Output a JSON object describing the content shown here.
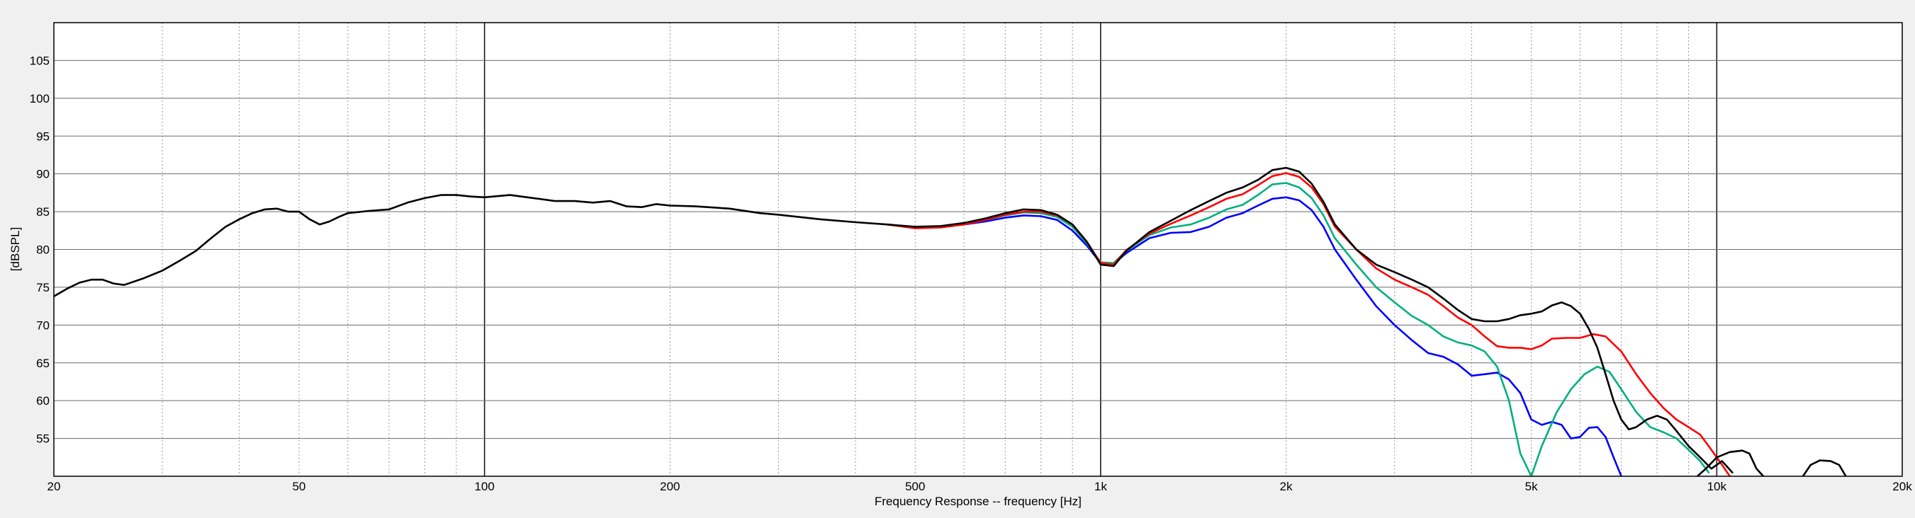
{
  "chart_data": {
    "type": "line",
    "title": "",
    "xlabel": "Frequency Response -- frequency [Hz]",
    "ylabel": "[dBSPL]",
    "xscale": "log",
    "xlim": [
      20,
      20000
    ],
    "ylim": [
      50,
      110
    ],
    "grid": true,
    "legend": "none",
    "x_ticks": [
      {
        "value": 20,
        "label": "20"
      },
      {
        "value": 50,
        "label": "50"
      },
      {
        "value": 100,
        "label": "100"
      },
      {
        "value": 200,
        "label": "200"
      },
      {
        "value": 500,
        "label": "500"
      },
      {
        "value": 1000,
        "label": "1k"
      },
      {
        "value": 2000,
        "label": "2k"
      },
      {
        "value": 5000,
        "label": "5k"
      },
      {
        "value": 10000,
        "label": "10k"
      },
      {
        "value": 20000,
        "label": "20k"
      }
    ],
    "y_ticks": [
      {
        "value": 55,
        "label": "55"
      },
      {
        "value": 60,
        "label": "60"
      },
      {
        "value": 65,
        "label": "65"
      },
      {
        "value": 70,
        "label": "70"
      },
      {
        "value": 75,
        "label": "75"
      },
      {
        "value": 80,
        "label": "80"
      },
      {
        "value": 85,
        "label": "85"
      },
      {
        "value": 90,
        "label": "90"
      },
      {
        "value": 95,
        "label": "95"
      },
      {
        "value": 100,
        "label": "100"
      },
      {
        "value": 105,
        "label": "105"
      }
    ],
    "series": [
      {
        "color": "#0000ff",
        "points": [
          [
            450,
            83.3
          ],
          [
            500,
            82.9
          ],
          [
            550,
            83.0
          ],
          [
            600,
            83.3
          ],
          [
            650,
            83.7
          ],
          [
            700,
            84.2
          ],
          [
            750,
            84.5
          ],
          [
            800,
            84.4
          ],
          [
            850,
            83.9
          ],
          [
            900,
            82.5
          ],
          [
            950,
            80.5
          ],
          [
            1000,
            78.2
          ],
          [
            1050,
            78.1
          ],
          [
            1100,
            79.5
          ],
          [
            1200,
            81.5
          ],
          [
            1300,
            82.2
          ],
          [
            1400,
            82.3
          ],
          [
            1500,
            83.0
          ],
          [
            1600,
            84.2
          ],
          [
            1700,
            84.8
          ],
          [
            1800,
            85.8
          ],
          [
            1900,
            86.7
          ],
          [
            2000,
            86.9
          ],
          [
            2100,
            86.5
          ],
          [
            2200,
            85.2
          ],
          [
            2300,
            83.0
          ],
          [
            2400,
            80.0
          ],
          [
            2600,
            76.0
          ],
          [
            2800,
            72.5
          ],
          [
            3000,
            70.0
          ],
          [
            3200,
            68.0
          ],
          [
            3400,
            66.3
          ],
          [
            3600,
            65.8
          ],
          [
            3800,
            64.8
          ],
          [
            4000,
            63.3
          ],
          [
            4200,
            63.5
          ],
          [
            4400,
            63.7
          ],
          [
            4600,
            62.8
          ],
          [
            4800,
            61.0
          ],
          [
            5000,
            57.5
          ],
          [
            5200,
            56.8
          ],
          [
            5400,
            57.2
          ],
          [
            5600,
            56.8
          ],
          [
            5800,
            55.0
          ],
          [
            6000,
            55.2
          ],
          [
            6200,
            56.4
          ],
          [
            6400,
            56.5
          ],
          [
            6600,
            55.2
          ],
          [
            6800,
            52.5
          ],
          [
            7000,
            50.0
          ]
        ]
      },
      {
        "color": "#00b080",
        "points": [
          [
            450,
            83.3
          ],
          [
            500,
            82.9
          ],
          [
            550,
            83.0
          ],
          [
            600,
            83.4
          ],
          [
            650,
            83.9
          ],
          [
            700,
            84.5
          ],
          [
            750,
            84.9
          ],
          [
            800,
            84.8
          ],
          [
            850,
            84.3
          ],
          [
            900,
            83.0
          ],
          [
            950,
            80.8
          ],
          [
            1000,
            78.3
          ],
          [
            1050,
            78.2
          ],
          [
            1100,
            79.8
          ],
          [
            1200,
            81.9
          ],
          [
            1300,
            82.9
          ],
          [
            1400,
            83.3
          ],
          [
            1500,
            84.2
          ],
          [
            1600,
            85.3
          ],
          [
            1700,
            85.9
          ],
          [
            1800,
            87.2
          ],
          [
            1900,
            88.6
          ],
          [
            2000,
            88.8
          ],
          [
            2100,
            88.2
          ],
          [
            2200,
            86.8
          ],
          [
            2300,
            84.5
          ],
          [
            2400,
            81.5
          ],
          [
            2600,
            78.0
          ],
          [
            2800,
            75.0
          ],
          [
            3000,
            73.0
          ],
          [
            3200,
            71.2
          ],
          [
            3400,
            70.0
          ],
          [
            3600,
            68.5
          ],
          [
            3800,
            67.7
          ],
          [
            4000,
            67.3
          ],
          [
            4200,
            66.5
          ],
          [
            4400,
            64.5
          ],
          [
            4600,
            60.0
          ],
          [
            4800,
            53.0
          ],
          [
            5000,
            50.0
          ],
          [
            5200,
            54.0
          ],
          [
            5500,
            58.5
          ],
          [
            5800,
            61.5
          ],
          [
            6100,
            63.5
          ],
          [
            6400,
            64.5
          ],
          [
            6700,
            63.8
          ],
          [
            7000,
            61.5
          ],
          [
            7400,
            58.5
          ],
          [
            7800,
            56.5
          ],
          [
            8200,
            55.8
          ],
          [
            8600,
            55.0
          ],
          [
            9000,
            53.5
          ],
          [
            9400,
            52.0
          ],
          [
            9700,
            50.5
          ]
        ]
      },
      {
        "color": "#ff0000",
        "points": [
          [
            450,
            83.3
          ],
          [
            500,
            82.8
          ],
          [
            550,
            82.9
          ],
          [
            600,
            83.3
          ],
          [
            650,
            83.9
          ],
          [
            700,
            84.6
          ],
          [
            750,
            85.0
          ],
          [
            800,
            85.0
          ],
          [
            850,
            84.5
          ],
          [
            900,
            83.3
          ],
          [
            950,
            81.0
          ],
          [
            1000,
            78.2
          ],
          [
            1050,
            78.0
          ],
          [
            1100,
            79.9
          ],
          [
            1200,
            82.1
          ],
          [
            1300,
            83.4
          ],
          [
            1400,
            84.5
          ],
          [
            1500,
            85.6
          ],
          [
            1600,
            86.7
          ],
          [
            1700,
            87.3
          ],
          [
            1800,
            88.5
          ],
          [
            1900,
            89.7
          ],
          [
            2000,
            90.1
          ],
          [
            2100,
            89.6
          ],
          [
            2200,
            88.2
          ],
          [
            2300,
            86.0
          ],
          [
            2400,
            83.0
          ],
          [
            2600,
            80.0
          ],
          [
            2800,
            77.5
          ],
          [
            3000,
            76.0
          ],
          [
            3200,
            75.0
          ],
          [
            3400,
            74.0
          ],
          [
            3600,
            72.5
          ],
          [
            3800,
            71.0
          ],
          [
            4000,
            70.0
          ],
          [
            4200,
            68.5
          ],
          [
            4400,
            67.2
          ],
          [
            4600,
            67.0
          ],
          [
            4800,
            67.0
          ],
          [
            5000,
            66.8
          ],
          [
            5200,
            67.3
          ],
          [
            5400,
            68.2
          ],
          [
            5700,
            68.3
          ],
          [
            6000,
            68.3
          ],
          [
            6300,
            68.8
          ],
          [
            6600,
            68.5
          ],
          [
            7000,
            66.5
          ],
          [
            7400,
            63.5
          ],
          [
            7800,
            61.0
          ],
          [
            8200,
            59.0
          ],
          [
            8600,
            57.5
          ],
          [
            9000,
            56.5
          ],
          [
            9400,
            55.5
          ],
          [
            9800,
            53.5
          ],
          [
            10200,
            51.5
          ],
          [
            10500,
            50.0
          ]
        ]
      },
      {
        "color": "#000000",
        "points": [
          [
            20,
            73.8
          ],
          [
            21,
            74.8
          ],
          [
            22,
            75.6
          ],
          [
            23,
            76.0
          ],
          [
            24,
            76.0
          ],
          [
            25,
            75.5
          ],
          [
            26,
            75.3
          ],
          [
            28,
            76.2
          ],
          [
            30,
            77.2
          ],
          [
            32,
            78.5
          ],
          [
            34,
            79.8
          ],
          [
            36,
            81.5
          ],
          [
            38,
            83.0
          ],
          [
            40,
            84.0
          ],
          [
            42,
            84.8
          ],
          [
            44,
            85.3
          ],
          [
            46,
            85.4
          ],
          [
            48,
            85.0
          ],
          [
            50,
            85.0
          ],
          [
            52,
            84.0
          ],
          [
            54,
            83.3
          ],
          [
            56,
            83.7
          ],
          [
            58,
            84.3
          ],
          [
            60,
            84.8
          ],
          [
            65,
            85.1
          ],
          [
            70,
            85.3
          ],
          [
            75,
            86.2
          ],
          [
            80,
            86.8
          ],
          [
            85,
            87.2
          ],
          [
            90,
            87.2
          ],
          [
            95,
            87.0
          ],
          [
            100,
            86.9
          ],
          [
            110,
            87.2
          ],
          [
            120,
            86.8
          ],
          [
            130,
            86.4
          ],
          [
            140,
            86.4
          ],
          [
            150,
            86.2
          ],
          [
            160,
            86.4
          ],
          [
            170,
            85.7
          ],
          [
            180,
            85.6
          ],
          [
            190,
            86.0
          ],
          [
            200,
            85.8
          ],
          [
            220,
            85.7
          ],
          [
            250,
            85.4
          ],
          [
            280,
            84.8
          ],
          [
            300,
            84.6
          ],
          [
            350,
            84.0
          ],
          [
            400,
            83.6
          ],
          [
            450,
            83.3
          ],
          [
            500,
            83.0
          ],
          [
            550,
            83.1
          ],
          [
            600,
            83.5
          ],
          [
            650,
            84.1
          ],
          [
            700,
            84.8
          ],
          [
            750,
            85.3
          ],
          [
            800,
            85.2
          ],
          [
            850,
            84.6
          ],
          [
            900,
            83.3
          ],
          [
            950,
            81.0
          ],
          [
            1000,
            78.0
          ],
          [
            1050,
            77.8
          ],
          [
            1100,
            79.8
          ],
          [
            1200,
            82.3
          ],
          [
            1300,
            83.8
          ],
          [
            1400,
            85.2
          ],
          [
            1500,
            86.4
          ],
          [
            1600,
            87.5
          ],
          [
            1700,
            88.2
          ],
          [
            1800,
            89.2
          ],
          [
            1900,
            90.5
          ],
          [
            2000,
            90.8
          ],
          [
            2100,
            90.3
          ],
          [
            2200,
            88.7
          ],
          [
            2300,
            86.3
          ],
          [
            2400,
            83.3
          ],
          [
            2600,
            80.0
          ],
          [
            2800,
            78.0
          ],
          [
            3000,
            77.0
          ],
          [
            3200,
            76.0
          ],
          [
            3400,
            75.0
          ],
          [
            3600,
            73.5
          ],
          [
            3800,
            72.0
          ],
          [
            4000,
            70.8
          ],
          [
            4200,
            70.5
          ],
          [
            4400,
            70.5
          ],
          [
            4600,
            70.8
          ],
          [
            4800,
            71.3
          ],
          [
            5000,
            71.5
          ],
          [
            5200,
            71.8
          ],
          [
            5400,
            72.6
          ],
          [
            5600,
            73.0
          ],
          [
            5800,
            72.5
          ],
          [
            6000,
            71.5
          ],
          [
            6200,
            69.5
          ],
          [
            6400,
            67.0
          ],
          [
            6600,
            63.5
          ],
          [
            6800,
            60.0
          ],
          [
            7000,
            57.5
          ],
          [
            7200,
            56.2
          ],
          [
            7400,
            56.5
          ],
          [
            7700,
            57.5
          ],
          [
            8000,
            58.0
          ],
          [
            8300,
            57.5
          ],
          [
            8600,
            56.0
          ],
          [
            9000,
            54.0
          ],
          [
            9400,
            52.5
          ],
          [
            9800,
            51.0
          ],
          [
            10200,
            52.0
          ],
          [
            10600,
            50.5
          ]
        ]
      },
      {
        "color": "#000000",
        "points": [
          [
            9300,
            50.0
          ],
          [
            9600,
            51.0
          ],
          [
            10000,
            52.5
          ],
          [
            10500,
            53.2
          ],
          [
            11000,
            53.4
          ],
          [
            11300,
            53.0
          ],
          [
            11600,
            51.0
          ],
          [
            11900,
            50.0
          ]
        ]
      },
      {
        "color": "#000000",
        "points": [
          [
            13800,
            50.0
          ],
          [
            14200,
            51.5
          ],
          [
            14700,
            52.1
          ],
          [
            15300,
            52.0
          ],
          [
            15800,
            51.5
          ],
          [
            16200,
            50.0
          ]
        ]
      }
    ]
  }
}
